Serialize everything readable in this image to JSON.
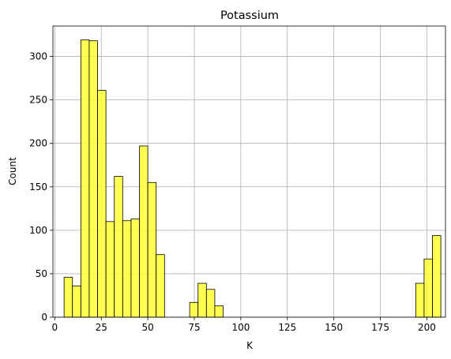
{
  "chart_data": {
    "type": "bar",
    "subtype": "histogram",
    "title": "Potassium",
    "xlabel": "K",
    "ylabel": "Count",
    "xlim": [
      -1,
      210
    ],
    "ylim": [
      0,
      335
    ],
    "xticks": [
      0,
      25,
      50,
      75,
      100,
      125,
      150,
      175,
      200
    ],
    "yticks": [
      0,
      50,
      100,
      150,
      200,
      250,
      300
    ],
    "grid": true,
    "bar_color": "#ffff33",
    "edge_color": "#000000",
    "bins": [
      {
        "x0": 5,
        "x1": 9.5,
        "count": 46
      },
      {
        "x0": 9.5,
        "x1": 14,
        "count": 36
      },
      {
        "x0": 14,
        "x1": 18.5,
        "count": 319
      },
      {
        "x0": 18.5,
        "x1": 23,
        "count": 318
      },
      {
        "x0": 23,
        "x1": 27.5,
        "count": 261
      },
      {
        "x0": 27.5,
        "x1": 32,
        "count": 110
      },
      {
        "x0": 32,
        "x1": 36.5,
        "count": 162
      },
      {
        "x0": 36.5,
        "x1": 41,
        "count": 111
      },
      {
        "x0": 41,
        "x1": 45.5,
        "count": 113
      },
      {
        "x0": 45.5,
        "x1": 50,
        "count": 197
      },
      {
        "x0": 50,
        "x1": 54.5,
        "count": 155
      },
      {
        "x0": 54.5,
        "x1": 59,
        "count": 72
      },
      {
        "x0": 72.5,
        "x1": 77,
        "count": 17
      },
      {
        "x0": 77,
        "x1": 81.5,
        "count": 39
      },
      {
        "x0": 81.5,
        "x1": 86,
        "count": 32
      },
      {
        "x0": 86,
        "x1": 90.5,
        "count": 13
      },
      {
        "x0": 194,
        "x1": 198.5,
        "count": 39
      },
      {
        "x0": 198.5,
        "x1": 203,
        "count": 67
      },
      {
        "x0": 203,
        "x1": 207.5,
        "count": 94
      }
    ]
  }
}
